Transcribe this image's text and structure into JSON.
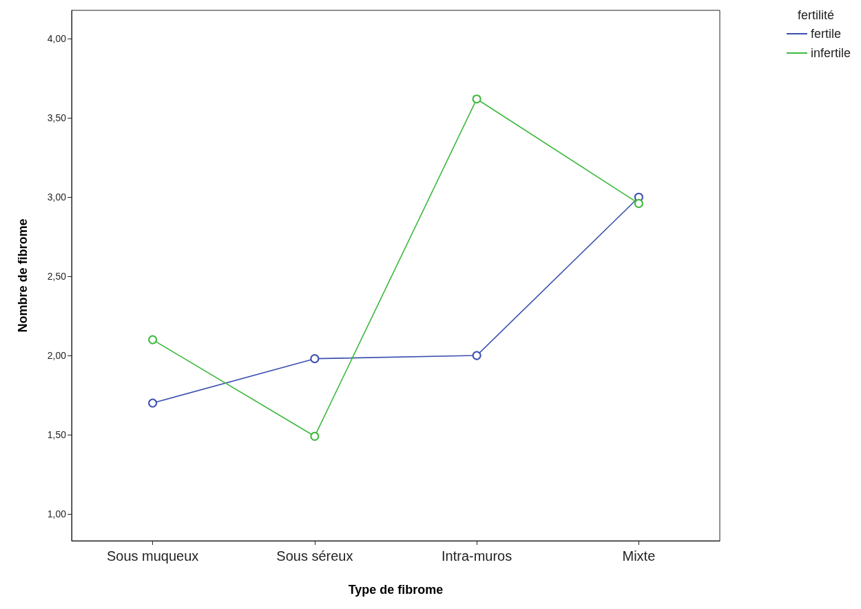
{
  "chart_data": {
    "type": "line",
    "xlabel": "Type de fibrome",
    "ylabel": "Nombre de fibrome",
    "legend_title": "fertilité",
    "categories": [
      "Sous muqueux",
      "Sous séreux",
      "Intra-muros",
      "Mixte"
    ],
    "series": [
      {
        "name": "fertile",
        "color": "#3a4fb0",
        "values": [
          1.7,
          1.98,
          2.0,
          3.0
        ]
      },
      {
        "name": "infertile",
        "color": "#3cb83c",
        "values": [
          2.1,
          1.49,
          3.62,
          2.96
        ]
      }
    ],
    "ylim": [
      0.83,
      4.18
    ],
    "yticks": [
      {
        "value": 1,
        "label": "1,00"
      },
      {
        "value": 1.5,
        "label": "1,50"
      },
      {
        "value": 2,
        "label": "2,00"
      },
      {
        "value": 2.5,
        "label": "2,50"
      },
      {
        "value": 3,
        "label": "3,00"
      },
      {
        "value": 3.5,
        "label": "3,50"
      },
      {
        "value": 4,
        "label": "4,00"
      }
    ],
    "grid": false,
    "legend": "top right",
    "marker": "circle",
    "line_style": "solid"
  }
}
